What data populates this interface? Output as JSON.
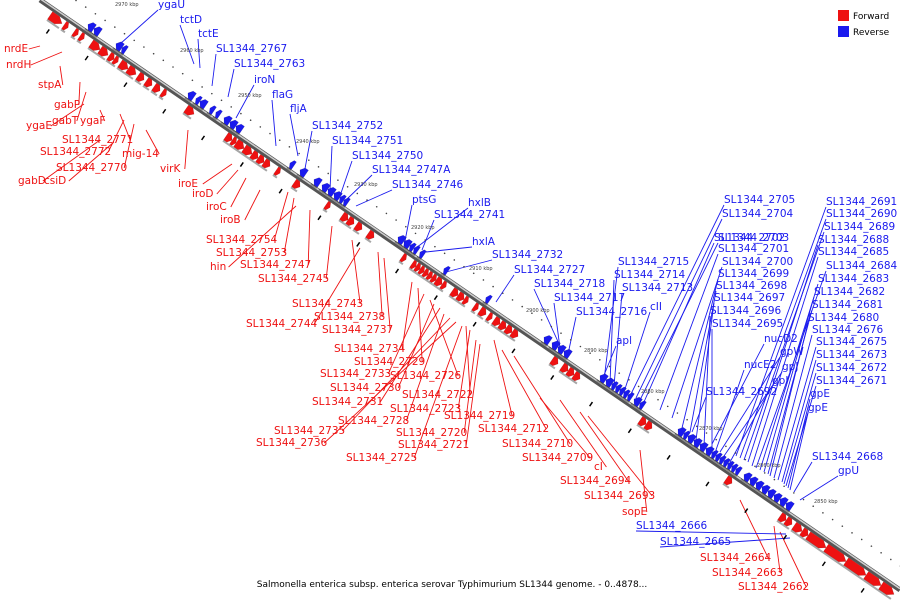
{
  "caption": "Salmonella enterica subsp. enterica serovar Typhimurium SL1344 genome. - 0..4878...",
  "legend": [
    {
      "label": "Forward",
      "color": "#ee1111"
    },
    {
      "label": "Reverse",
      "color": "#1a1aee"
    }
  ],
  "colors": {
    "forward": "#ee1111",
    "reverse": "#1a1aee",
    "backbone": "#666666"
  },
  "scale_labels": [
    "2970 kbp",
    "2960 kbp",
    "2950 kbp",
    "2940 kbp",
    "2930 kbp",
    "2920 kbp",
    "2910 kbp",
    "2900 kbp",
    "2890 kbp",
    "2880 kbp",
    "2870 kbp",
    "2860 kbp",
    "2850 kbp"
  ],
  "forward_genes": [
    "nrdE",
    "nrdH",
    "stpA",
    "gabP",
    "gabT",
    "ygaE",
    "ygaF",
    "SL1344_2771",
    "SL1344_2772",
    "mig-14",
    "SL1344_2770",
    "gabD",
    "csiD",
    "virK",
    "iroE",
    "iroD",
    "iroC",
    "iroB",
    "SL1344_2754",
    "SL1344_2753",
    "hin",
    "SL1344_2747",
    "SL1344_2745",
    "SL1344_2743",
    "SL1344_2744",
    "SL1344_2738",
    "SL1344_2737",
    "SL1344_2734",
    "SL1344_2729",
    "SL1344_2733",
    "SL1344_2726",
    "SL1344_2730",
    "SL1344_2731",
    "SL1344_2722",
    "SL1344_2723",
    "SL1344_2728",
    "SL1344_2719",
    "SL1344_2735",
    "SL1344_2720",
    "SL1344_2712",
    "SL1344_2736",
    "SL1344_2721",
    "SL1344_2710",
    "SL1344_2725",
    "SL1344_2709",
    "cI",
    "SL1344_2694",
    "SL1344_2693",
    "sopE",
    "SL1344_2664",
    "SL1344_2663",
    "SL1344_2662"
  ],
  "reverse_genes": [
    "ygaU",
    "tctD",
    "tctE",
    "SL1344_2767",
    "SL1344_2763",
    "iroN",
    "flaG",
    "fljA",
    "SL1344_2752",
    "SL1344_2751",
    "SL1344_2750",
    "SL1344_2747A",
    "SL1344_2746",
    "ptsG",
    "hxlB",
    "SL1344_2741",
    "hxlA",
    "SL1344_2732",
    "SL1344_2727",
    "SL1344_2718",
    "SL1344_2717",
    "SL1344_2716",
    "SL1344_2715",
    "SL1344_2714",
    "SL1344_2713",
    "cII",
    "apl",
    "SL1344_2705",
    "SL1344_2704",
    "SL1344_2703",
    "SL1344_2702",
    "SL1344_2701",
    "SL1344_2700",
    "SL1344_2699",
    "SL1344_2698",
    "SL1344_2697",
    "SL1344_2696",
    "SL1344_2695",
    "SL1344_2692",
    "nucD2",
    "nucE2",
    "gpW",
    "gpJ",
    "gpI",
    "SL1344_2691",
    "SL1344_2690",
    "SL1344_2689",
    "SL1344_2688",
    "SL1344_2685",
    "SL1344_2684",
    "SL1344_2683",
    "SL1344_2682",
    "SL1344_2681",
    "SL1344_2680",
    "SL1344_2676",
    "SL1344_2675",
    "SL1344_2673",
    "SL1344_2672",
    "SL1344_2671",
    "gpE",
    "gpE",
    "SL1344_2668",
    "gpU",
    "SL1344_2666",
    "SL1344_2665"
  ]
}
